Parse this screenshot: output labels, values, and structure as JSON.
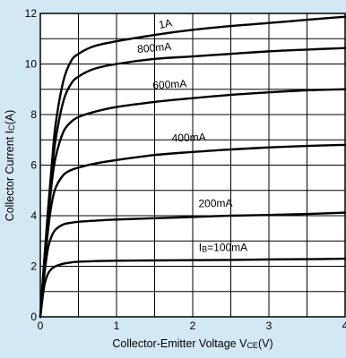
{
  "chart_data": {
    "type": "line",
    "xlabel": "Collector-Emitter Voltage VCE(V)",
    "ylabel": "Collector Current IC(A)",
    "xlabel_parts": [
      "Collector-Emitter Voltage V",
      "CE",
      "(V)"
    ],
    "ylabel_parts": [
      "Collector Current I",
      "C",
      "(A)"
    ],
    "xlim": [
      0,
      4
    ],
    "ylim": [
      0,
      12
    ],
    "x_ticks": [
      0,
      1,
      2,
      3,
      4
    ],
    "y_ticks": [
      0,
      2,
      4,
      6,
      8,
      10,
      12
    ],
    "x_tick_labels": [
      "0",
      "1",
      "2",
      "3",
      "4"
    ],
    "y_tick_labels": [
      "0",
      "2",
      "4",
      "6",
      "8",
      "10",
      "12"
    ],
    "grid": true,
    "x_minor_step": 0.5,
    "y_minor_step": 1,
    "line_color": "#000000",
    "background_color": "#d3e8f5",
    "plot_background_color": "#ffffff",
    "series": [
      {
        "name": "IB=100mA",
        "label_parts": [
          "I",
          "B",
          "=100mA"
        ],
        "x": [
          0,
          0.05,
          0.1,
          0.15,
          0.2,
          0.3,
          0.4,
          0.5,
          0.7,
          1.0,
          1.5,
          2.0,
          2.5,
          3.0,
          3.5,
          4.0
        ],
        "y": [
          0,
          1.2,
          1.7,
          1.9,
          2.0,
          2.1,
          2.15,
          2.18,
          2.2,
          2.22,
          2.23,
          2.24,
          2.25,
          2.27,
          2.28,
          2.3
        ]
      },
      {
        "name": "200mA",
        "x": [
          0,
          0.05,
          0.1,
          0.15,
          0.2,
          0.3,
          0.4,
          0.5,
          0.7,
          1.0,
          1.5,
          2.0,
          2.5,
          3.0,
          3.5,
          4.0
        ],
        "y": [
          0,
          1.6,
          2.7,
          3.2,
          3.45,
          3.65,
          3.72,
          3.76,
          3.8,
          3.85,
          3.9,
          3.95,
          4.0,
          4.03,
          4.07,
          4.12
        ]
      },
      {
        "name": "400mA",
        "x": [
          0,
          0.05,
          0.1,
          0.15,
          0.2,
          0.3,
          0.4,
          0.5,
          0.7,
          1.0,
          1.5,
          2.0,
          2.5,
          3.0,
          3.5,
          4.0
        ],
        "y": [
          0,
          1.8,
          3.4,
          4.5,
          5.1,
          5.6,
          5.8,
          5.9,
          6.05,
          6.2,
          6.4,
          6.52,
          6.62,
          6.7,
          6.76,
          6.8
        ]
      },
      {
        "name": "600mA",
        "x": [
          0,
          0.05,
          0.1,
          0.15,
          0.2,
          0.3,
          0.4,
          0.5,
          0.7,
          1.0,
          1.5,
          2.0,
          2.5,
          3.0,
          3.5,
          4.0
        ],
        "y": [
          0,
          2.0,
          3.8,
          5.3,
          6.3,
          7.3,
          7.7,
          7.9,
          8.1,
          8.3,
          8.5,
          8.65,
          8.78,
          8.88,
          8.96,
          9.0
        ]
      },
      {
        "name": "800mA",
        "x": [
          0,
          0.05,
          0.1,
          0.15,
          0.2,
          0.3,
          0.4,
          0.5,
          0.7,
          1.0,
          1.5,
          2.0,
          2.5,
          3.0,
          3.5,
          4.0
        ],
        "y": [
          0,
          2.1,
          4.0,
          5.7,
          7.0,
          8.5,
          9.2,
          9.5,
          9.8,
          10.0,
          10.2,
          10.3,
          10.4,
          10.5,
          10.57,
          10.63
        ]
      },
      {
        "name": "1A",
        "x": [
          0,
          0.05,
          0.1,
          0.15,
          0.2,
          0.3,
          0.4,
          0.5,
          0.7,
          1.0,
          1.5,
          2.0,
          2.5,
          3.0,
          3.5,
          4.0
        ],
        "y": [
          0,
          2.2,
          4.2,
          6.0,
          7.6,
          9.3,
          10.1,
          10.4,
          10.7,
          10.9,
          11.15,
          11.35,
          11.5,
          11.62,
          11.75,
          11.87
        ]
      }
    ],
    "annotations": [
      {
        "series": "1A",
        "text": "1A",
        "x": 1.65,
        "y": 11.45,
        "angle": -12
      },
      {
        "series": "800mA",
        "text": "800mA",
        "x": 1.5,
        "y": 10.5,
        "angle": -5
      },
      {
        "series": "600mA",
        "text": "600mA",
        "x": 1.7,
        "y": 9.05,
        "angle": -3
      },
      {
        "series": "400mA",
        "text": "400mA",
        "x": 1.95,
        "y": 6.95,
        "angle": -2
      },
      {
        "series": "200mA",
        "text": "200mA",
        "x": 2.3,
        "y": 4.35,
        "angle": -1
      },
      {
        "series": "IB=100mA",
        "text": "IB=100mA",
        "x": 2.4,
        "y": 2.6,
        "angle": 0
      }
    ]
  }
}
